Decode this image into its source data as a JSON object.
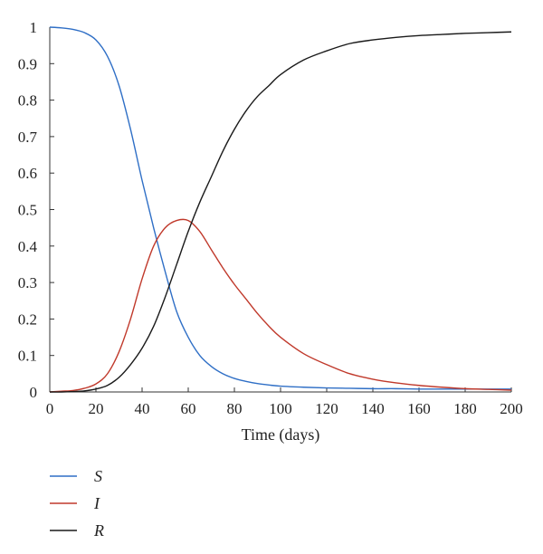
{
  "chart_data": {
    "type": "line",
    "xlabel": "Time (days)",
    "ylabel": "",
    "xlim": [
      0,
      200
    ],
    "ylim": [
      0,
      1
    ],
    "x_ticks": [
      "0",
      "20",
      "40",
      "60",
      "80",
      "100",
      "120",
      "140",
      "160",
      "180",
      "200"
    ],
    "y_ticks": [
      "0",
      "0.1",
      "0.2",
      "0.3",
      "0.4",
      "0.5",
      "0.6",
      "0.7",
      "0.8",
      "0.9",
      "1"
    ],
    "grid": false,
    "legend_position": "bottom-left",
    "x": [
      0,
      5,
      10,
      15,
      20,
      25,
      30,
      35,
      40,
      45,
      50,
      55,
      60,
      65,
      70,
      75,
      80,
      85,
      90,
      95,
      100,
      110,
      120,
      130,
      140,
      150,
      160,
      170,
      180,
      190,
      200
    ],
    "series": [
      {
        "name": "S",
        "color": "#2f6fc6",
        "values": [
          1.0,
          0.998,
          0.994,
          0.985,
          0.965,
          0.92,
          0.84,
          0.72,
          0.58,
          0.45,
          0.33,
          0.22,
          0.15,
          0.1,
          0.07,
          0.05,
          0.037,
          0.029,
          0.023,
          0.019,
          0.016,
          0.013,
          0.011,
          0.01,
          0.009,
          0.009,
          0.008,
          0.008,
          0.008,
          0.008,
          0.008
        ]
      },
      {
        "name": "I",
        "color": "#c0392b",
        "values": [
          0.0,
          0.002,
          0.004,
          0.01,
          0.022,
          0.05,
          0.11,
          0.2,
          0.31,
          0.4,
          0.45,
          0.47,
          0.47,
          0.44,
          0.39,
          0.34,
          0.295,
          0.255,
          0.215,
          0.18,
          0.15,
          0.105,
          0.075,
          0.05,
          0.035,
          0.025,
          0.018,
          0.013,
          0.009,
          0.007,
          0.005
        ]
      },
      {
        "name": "R",
        "color": "#1a1a1a",
        "values": [
          0.0,
          0.0,
          0.001,
          0.003,
          0.008,
          0.018,
          0.04,
          0.075,
          0.12,
          0.18,
          0.26,
          0.35,
          0.44,
          0.52,
          0.59,
          0.66,
          0.72,
          0.77,
          0.81,
          0.84,
          0.87,
          0.91,
          0.935,
          0.955,
          0.965,
          0.972,
          0.977,
          0.98,
          0.983,
          0.985,
          0.987
        ]
      }
    ]
  }
}
